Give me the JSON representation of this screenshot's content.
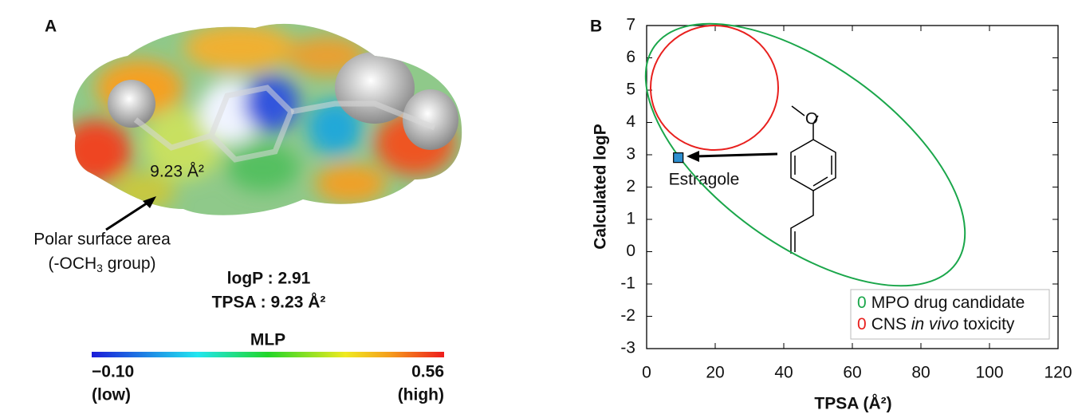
{
  "panel_a": {
    "label": "A",
    "surface_label": "9.23 Å²",
    "annotation_line1": "Polar surface area",
    "annotation_line2": {
      "pre": "(-OCH",
      "sub": "3",
      "post": " group)"
    },
    "logp_text": "logP : 2.91",
    "tpsa_text": "TPSA : 9.23 Å²",
    "colorbar": {
      "title": "MLP",
      "min_label": "−0.10",
      "min_note": "(low)",
      "max_label": "0.56",
      "max_note": "(high)"
    }
  },
  "chart_data": {
    "type": "scatter",
    "panel_label": "B",
    "x_label": "TPSA (Å²)",
    "y_label": "Calculated logP",
    "xlim": [
      0,
      120
    ],
    "xticks": [
      0,
      20,
      40,
      60,
      80,
      100,
      120
    ],
    "ylim": [
      -3,
      7
    ],
    "yticks": [
      -3,
      -2,
      -1,
      0,
      1,
      2,
      3,
      4,
      5,
      6,
      7
    ],
    "series": [
      {
        "name": "Estragole",
        "color": "#2e8fd0",
        "x": [
          9.23
        ],
        "values": [
          2.91
        ]
      }
    ],
    "legend": [
      {
        "marker": "0",
        "name": "MPO drug candidate",
        "color": "#1aa64a"
      },
      {
        "marker": "0",
        "name": [
          "CNS ",
          "in vivo",
          " toxicity"
        ],
        "color": "#e8201e"
      }
    ]
  }
}
